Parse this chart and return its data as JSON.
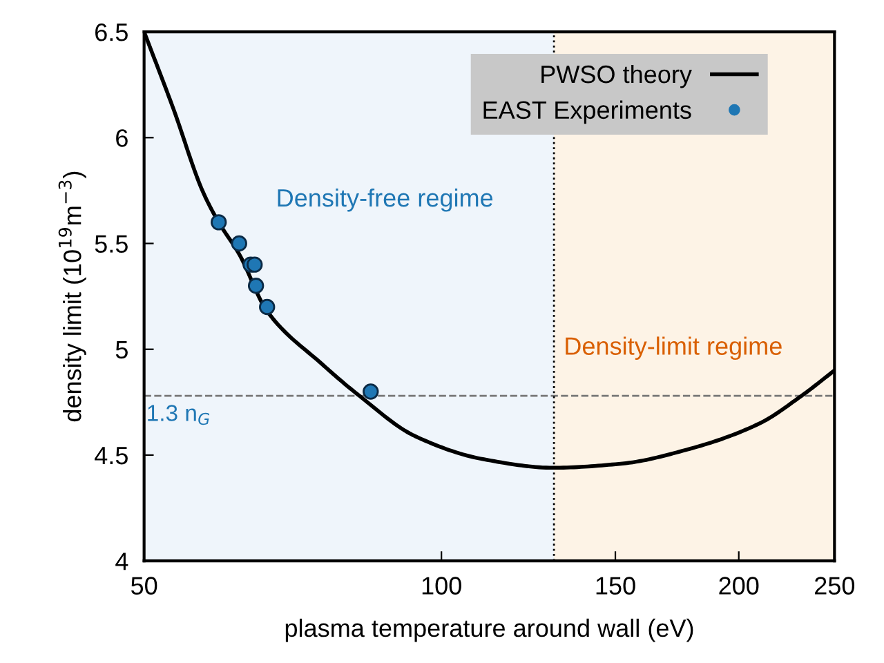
{
  "chart_data": {
    "type": "line",
    "xlabel": "plasma temperature around wall (eV)",
    "ylabel": "density limit (10$^{19}$m$^{−3}$)",
    "log": "x",
    "xlim": [
      50,
      250
    ],
    "xticks": [
      50,
      100,
      150,
      200,
      250
    ],
    "ylim": [
      4,
      6.5
    ],
    "yticks": [
      4,
      4.5,
      5,
      5.5,
      6,
      6.5
    ],
    "grid": false,
    "legend": "top right",
    "series": [
      {
        "name": "PWSO theory",
        "color": "#000000",
        "marker": "none",
        "line_style": "solid",
        "x": [
          50,
          53.5,
          57.4,
          59.5,
          62.4,
          66.6,
          75.7,
          82.6,
          94,
          110.4,
          129.7,
          152.5,
          178.6,
          210,
          231.5,
          250
        ],
        "values": [
          6.5,
          6.14,
          5.74,
          5.6,
          5.45,
          5.18,
          4.93,
          4.78,
          4.59,
          4.48,
          4.44,
          4.46,
          4.53,
          4.65,
          4.78,
          4.9
        ]
      },
      {
        "name": "EAST Experiments",
        "type": "scatter",
        "color": "#1f77b4",
        "marker": "circle",
        "x": [
          59.5,
          62.4,
          64.1,
          64.7,
          64.9,
          66.6,
          84.8
        ],
        "values": [
          5.6,
          5.5,
          5.4,
          5.4,
          5.3,
          5.2,
          4.8
        ]
      }
    ],
    "ref_lines": [
      {
        "axis": "y",
        "value": 4.78,
        "label": "1.3 n$_{G}$",
        "color": "#777777",
        "line_style": "dashed"
      },
      {
        "axis": "x",
        "value": 130,
        "label": null,
        "color": "#000000",
        "line_style": "dotted"
      }
    ],
    "bands": [
      {
        "axis": "x",
        "from": 50,
        "to": 130,
        "label": "Density-free regime",
        "color": "#eff5fb"
      },
      {
        "axis": "x",
        "from": 130,
        "to": 250,
        "label": "Density-limit regime",
        "color": "#fdf3e6"
      }
    ]
  }
}
